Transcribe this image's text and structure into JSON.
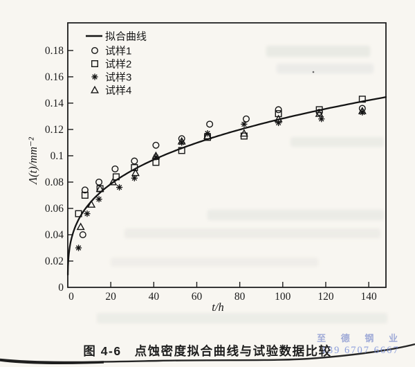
{
  "page": {
    "caption": "图 4-6　点蚀密度拟合曲线与试验数据比较",
    "watermark_line1": "至 德 钢 业",
    "watermark_line2": "139 6707 6667",
    "paper_color": "#f8f6f1",
    "ink_color": "#1b1b1b",
    "watermark_color": "#7d8ccd"
  },
  "chart_data": {
    "type": "scatter",
    "title": "图 4-6　点蚀密度拟合曲线与试验数据比较",
    "xlabel": "t/h",
    "ylabel": "Λ(t)/mm⁻²",
    "xlim": [
      0,
      148
    ],
    "ylim": [
      0,
      0.201
    ],
    "grid": false,
    "legend_position": "upper-left-inside",
    "x_ticks": [
      {
        "value": 0,
        "label": "0"
      },
      {
        "value": 20,
        "label": "20"
      },
      {
        "value": 40,
        "label": "40"
      },
      {
        "value": 60,
        "label": "60"
      },
      {
        "value": 80,
        "label": "80"
      },
      {
        "value": 100,
        "label": "100"
      },
      {
        "value": 120,
        "label": "120"
      },
      {
        "value": 140,
        "label": "140"
      }
    ],
    "y_ticks": [
      {
        "value": 0,
        "label": "0"
      },
      {
        "value": 0.02,
        "label": "0.02"
      },
      {
        "value": 0.04,
        "label": "0.04"
      },
      {
        "value": 0.06,
        "label": "0.06"
      },
      {
        "value": 0.08,
        "label": "0.08"
      },
      {
        "value": 0.1,
        "label": "0.1"
      },
      {
        "value": 0.12,
        "label": "0.12"
      },
      {
        "value": 0.14,
        "label": "0.14"
      },
      {
        "value": 0.16,
        "label": "0.16"
      },
      {
        "value": 0.18,
        "label": "0.18"
      }
    ],
    "legend": [
      {
        "label": "拟合曲线",
        "marker": "line"
      },
      {
        "label": "试样1",
        "marker": "circle"
      },
      {
        "label": "试样2",
        "marker": "square"
      },
      {
        "label": "试样3",
        "marker": "asterisk"
      },
      {
        "label": "试样4",
        "marker": "triangle"
      }
    ],
    "fit": {
      "name": "拟合曲线",
      "model": "power",
      "a": 0.0315,
      "b": 0.305,
      "t_max": 148
    },
    "series": [
      {
        "name": "试样1",
        "marker": "circle",
        "points": [
          [
            7,
            0.04
          ],
          [
            8,
            0.074
          ],
          [
            14.5,
            0.08
          ],
          [
            22,
            0.09
          ],
          [
            31,
            0.096
          ],
          [
            41,
            0.108
          ],
          [
            53,
            0.113
          ],
          [
            66,
            0.124
          ],
          [
            83,
            0.128
          ],
          [
            98,
            0.135
          ],
          [
            117,
            0.133
          ],
          [
            137,
            0.136
          ]
        ]
      },
      {
        "name": "试样2",
        "marker": "square",
        "points": [
          [
            5,
            0.056
          ],
          [
            8,
            0.07
          ],
          [
            15,
            0.075
          ],
          [
            22.5,
            0.084
          ],
          [
            31,
            0.091
          ],
          [
            41,
            0.095
          ],
          [
            53,
            0.104
          ],
          [
            65,
            0.114
          ],
          [
            82,
            0.115
          ],
          [
            98,
            0.132
          ],
          [
            117,
            0.135
          ],
          [
            137,
            0.143
          ]
        ]
      },
      {
        "name": "试样3",
        "marker": "asterisk",
        "points": [
          [
            5,
            0.03
          ],
          [
            9,
            0.056
          ],
          [
            14.5,
            0.067
          ],
          [
            24,
            0.076
          ],
          [
            31,
            0.083
          ],
          [
            41,
            0.099
          ],
          [
            53,
            0.11
          ],
          [
            65,
            0.117
          ],
          [
            82,
            0.124
          ],
          [
            98,
            0.125
          ],
          [
            118,
            0.128
          ],
          [
            137,
            0.133
          ]
        ]
      },
      {
        "name": "试样4",
        "marker": "triangle",
        "points": [
          [
            6,
            0.046
          ],
          [
            11,
            0.063
          ],
          [
            15,
            0.075
          ],
          [
            21,
            0.08
          ],
          [
            31.5,
            0.087
          ],
          [
            41,
            0.1
          ],
          [
            53,
            0.111
          ],
          [
            65,
            0.115
          ],
          [
            82,
            0.117
          ],
          [
            98,
            0.128
          ],
          [
            117,
            0.132
          ],
          [
            137,
            0.134
          ]
        ]
      }
    ]
  }
}
